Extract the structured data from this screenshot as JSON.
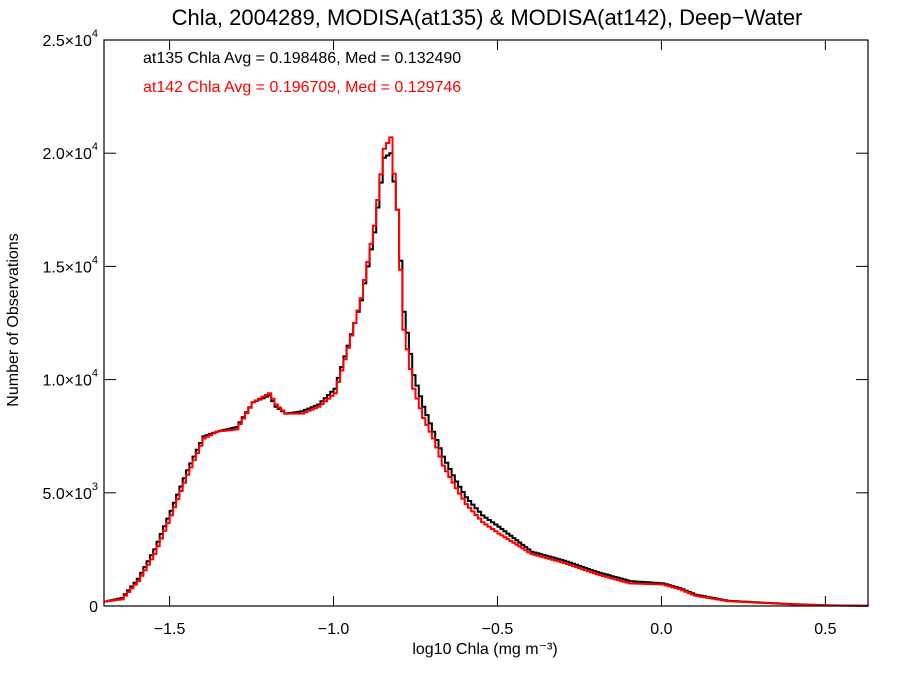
{
  "chart_data": {
    "type": "line",
    "step": true,
    "title": "Chla, 2004289, MODISA(at135) & MODISA(at142), Deep−Water",
    "xlabel": "log10 Chla (mg m⁻³)",
    "ylabel": "Number of Observations",
    "xlim": [
      -1.7,
      0.63
    ],
    "ylim": [
      0,
      25000
    ],
    "grid": false,
    "legend_position": "top-left",
    "x_ticks": [
      {
        "value": -1.5,
        "label": "−1.5"
      },
      {
        "value": -1.0,
        "label": "−1.0"
      },
      {
        "value": -0.5,
        "label": "−0.5"
      },
      {
        "value": 0.0,
        "label": "0.0"
      },
      {
        "value": 0.5,
        "label": "0.5"
      }
    ],
    "y_ticks": [
      {
        "value": 0,
        "mant": "0",
        "exp": ""
      },
      {
        "value": 5000,
        "mant": "5.0×10",
        "exp": "3"
      },
      {
        "value": 10000,
        "mant": "1.0×10",
        "exp": "4"
      },
      {
        "value": 15000,
        "mant": "1.5×10",
        "exp": "4"
      },
      {
        "value": 20000,
        "mant": "2.0×10",
        "exp": "4"
      },
      {
        "value": 25000,
        "mant": "2.5×10",
        "exp": "4"
      }
    ],
    "annotations": [
      {
        "text": "at135 Chla Avg = 0.198486, Med = 0.132490",
        "color": "#000000"
      },
      {
        "text": "at142 Chla Avg = 0.196709, Med = 0.129746",
        "color": "#ff0000"
      }
    ],
    "series": [
      {
        "color": "#000000",
        "x": [
          -1.7,
          -1.65,
          -1.6,
          -1.55,
          -1.5,
          -1.45,
          -1.4,
          -1.36,
          -1.3,
          -1.25,
          -1.2,
          -1.18,
          -1.15,
          -1.1,
          -1.05,
          -1.0,
          -0.96,
          -0.92,
          -0.88,
          -0.85,
          -0.83,
          -0.81,
          -0.79,
          -0.76,
          -0.73,
          -0.7,
          -0.67,
          -0.63,
          -0.6,
          -0.55,
          -0.5,
          -0.4,
          -0.3,
          -0.2,
          -0.1,
          0.0,
          0.05,
          0.1,
          0.2,
          0.3,
          0.4,
          0.5,
          0.63
        ],
        "y": [
          200,
          350,
          1200,
          2500,
          4200,
          6000,
          7500,
          7700,
          7900,
          9000,
          9300,
          8800,
          8500,
          8600,
          8900,
          9600,
          11500,
          13500,
          16500,
          19800,
          20000,
          17500,
          13000,
          10200,
          8800,
          7700,
          6600,
          5500,
          4800,
          4000,
          3500,
          2400,
          2000,
          1500,
          1100,
          1000,
          800,
          500,
          230,
          150,
          80,
          30,
          10
        ]
      },
      {
        "color": "#ff0000",
        "x": [
          -1.7,
          -1.65,
          -1.6,
          -1.55,
          -1.5,
          -1.45,
          -1.4,
          -1.36,
          -1.3,
          -1.25,
          -1.2,
          -1.18,
          -1.15,
          -1.1,
          -1.05,
          -1.0,
          -0.96,
          -0.92,
          -0.88,
          -0.85,
          -0.83,
          -0.81,
          -0.79,
          -0.76,
          -0.73,
          -0.7,
          -0.67,
          -0.63,
          -0.6,
          -0.55,
          -0.5,
          -0.4,
          -0.3,
          -0.2,
          -0.1,
          0.0,
          0.05,
          0.1,
          0.2,
          0.3,
          0.4,
          0.5,
          0.63
        ],
        "y": [
          200,
          300,
          1100,
          2300,
          4000,
          5800,
          7400,
          7700,
          7800,
          9000,
          9400,
          8900,
          8500,
          8500,
          8800,
          9400,
          11400,
          13600,
          16800,
          20200,
          20700,
          17500,
          12200,
          9600,
          8300,
          7400,
          6200,
          5200,
          4500,
          3700,
          3200,
          2300,
          1900,
          1400,
          1000,
          950,
          750,
          450,
          210,
          140,
          70,
          25,
          10
        ]
      }
    ]
  }
}
